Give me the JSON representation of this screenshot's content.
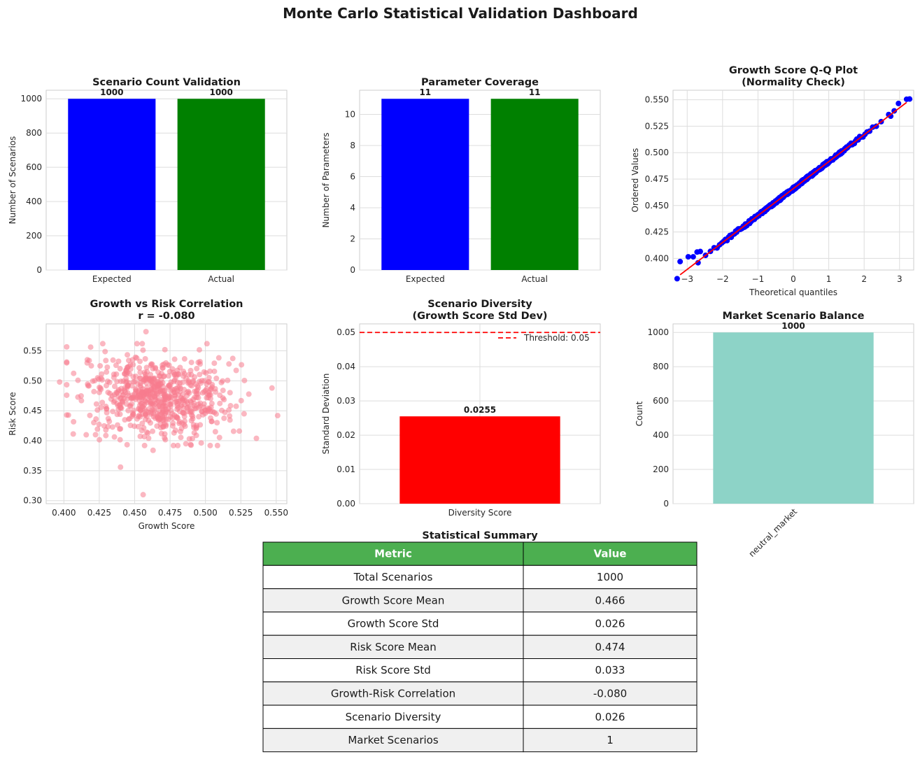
{
  "title": "Monte Carlo Statistical Validation Dashboard",
  "colors": {
    "blue": "#0000ff",
    "green": "#008000",
    "red": "#ff0000",
    "teal": "#8dd3c7",
    "scatter": "#f77b8e",
    "table_header": "#4caf50",
    "table_alt": "#f0f0f0"
  },
  "chart_data": [
    {
      "type": "bar",
      "title": "Scenario Count Validation",
      "ylabel": "Number of Scenarios",
      "categories": [
        "Expected",
        "Actual"
      ],
      "values": [
        1000,
        1000
      ],
      "value_labels": [
        "1000",
        "1000"
      ],
      "colors": [
        "#0000ff",
        "#008000"
      ],
      "ylim": [
        0,
        1050
      ],
      "yticks": [
        0,
        200,
        400,
        600,
        800,
        1000
      ]
    },
    {
      "type": "bar",
      "title": "Parameter Coverage",
      "ylabel": "Number of Parameters",
      "categories": [
        "Expected",
        "Actual"
      ],
      "values": [
        11,
        11
      ],
      "value_labels": [
        "11",
        "11"
      ],
      "colors": [
        "#0000ff",
        "#008000"
      ],
      "ylim": [
        0,
        11.55
      ],
      "yticks": [
        0,
        2,
        4,
        6,
        8,
        10
      ]
    },
    {
      "type": "scatter",
      "title": "Growth Score Q-Q Plot\n(Normality Check)",
      "xlabel": "Theoretical quantiles",
      "ylabel": "Ordered Values",
      "xlim": [
        -3.4,
        3.4
      ],
      "ylim": [
        0.389,
        0.559
      ],
      "xticks": [
        -3,
        -2,
        -1,
        0,
        1,
        2,
        3
      ],
      "yticks": [
        0.4,
        0.425,
        0.45,
        0.475,
        0.5,
        0.525,
        0.55
      ],
      "ytick_labels": [
        "0.400",
        "0.425",
        "0.450",
        "0.475",
        "0.500",
        "0.525",
        "0.550"
      ],
      "xtick_labels": [
        "−3",
        "−2",
        "−1",
        "0",
        "1",
        "2",
        "3"
      ],
      "fit_line": {
        "x": [
          -3.2,
          3.2
        ],
        "y": [
          0.3845,
          0.5475
        ]
      },
      "n_points": 1000,
      "mean": 0.466,
      "std": 0.0255,
      "tail_points": [
        {
          "x": -3.2,
          "y": 0.397
        },
        {
          "x": -2.97,
          "y": 0.4015
        },
        {
          "x": -2.83,
          "y": 0.4015
        },
        {
          "x": -2.72,
          "y": 0.406
        },
        {
          "x": -2.63,
          "y": 0.4065
        },
        {
          "x": 2.75,
          "y": 0.5345
        },
        {
          "x": 2.85,
          "y": 0.5395
        },
        {
          "x": 2.97,
          "y": 0.5465
        },
        {
          "x": 3.2,
          "y": 0.5505
        }
      ],
      "point_color": "#0000ff",
      "line_color": "#ff0000"
    },
    {
      "type": "scatter",
      "title": "Growth vs Risk Correlation\nr = -0.080",
      "xlabel": "Growth Score",
      "ylabel": "Risk Score",
      "xlim": [
        0.3875,
        0.5575
      ],
      "ylim": [
        0.295,
        0.595
      ],
      "xticks": [
        0.4,
        0.425,
        0.45,
        0.475,
        0.5,
        0.525,
        0.55
      ],
      "xtick_labels": [
        "0.400",
        "0.425",
        "0.450",
        "0.475",
        "0.500",
        "0.525",
        "0.550"
      ],
      "yticks": [
        0.3,
        0.35,
        0.4,
        0.45,
        0.5,
        0.55
      ],
      "ytick_labels": [
        "0.30",
        "0.35",
        "0.40",
        "0.45",
        "0.50",
        "0.55"
      ],
      "n_points": 1000,
      "x_mean": 0.466,
      "x_std": 0.0255,
      "y_mean": 0.474,
      "y_std": 0.033,
      "r": -0.08,
      "outliers": [
        {
          "x": 0.456,
          "y": 0.31
        },
        {
          "x": 0.44,
          "y": 0.356
        },
        {
          "x": 0.458,
          "y": 0.582
        },
        {
          "x": 0.551,
          "y": 0.442
        },
        {
          "x": 0.397,
          "y": 0.498
        },
        {
          "x": 0.536,
          "y": 0.404
        },
        {
          "x": 0.463,
          "y": 0.384
        },
        {
          "x": 0.547,
          "y": 0.488
        }
      ],
      "point_color": "#f77b8e"
    },
    {
      "type": "bar",
      "title": "Scenario Diversity\n(Growth Score Std Dev)",
      "ylabel": "Standard Deviation",
      "categories": [
        "Diversity Score"
      ],
      "values": [
        0.0255
      ],
      "value_labels": [
        "0.0255"
      ],
      "colors": [
        "#ff0000"
      ],
      "ylim": [
        0,
        0.0525
      ],
      "yticks": [
        0,
        0.01,
        0.02,
        0.03,
        0.04,
        0.05
      ],
      "ytick_labels": [
        "0.00",
        "0.01",
        "0.02",
        "0.03",
        "0.04",
        "0.05"
      ],
      "threshold": 0.05,
      "threshold_label": "Threshold: 0.05"
    },
    {
      "type": "bar",
      "title": "Market Scenario Balance",
      "ylabel": "Count",
      "categories": [
        "neutral_market"
      ],
      "values": [
        1000
      ],
      "value_labels": [
        "1000"
      ],
      "colors": [
        "#8dd3c7"
      ],
      "ylim": [
        0,
        1050
      ],
      "yticks": [
        0,
        200,
        400,
        600,
        800,
        1000
      ]
    },
    {
      "type": "table",
      "title": "Statistical Summary",
      "columns": [
        "Metric",
        "Value"
      ],
      "rows": [
        [
          "Total Scenarios",
          "1000"
        ],
        [
          "Growth Score Mean",
          "0.466"
        ],
        [
          "Growth Score Std",
          "0.026"
        ],
        [
          "Risk Score Mean",
          "0.474"
        ],
        [
          "Risk Score Std",
          "0.033"
        ],
        [
          "Growth-Risk Correlation",
          "-0.080"
        ],
        [
          "Scenario Diversity",
          "0.026"
        ],
        [
          "Market Scenarios",
          "1"
        ]
      ]
    }
  ]
}
